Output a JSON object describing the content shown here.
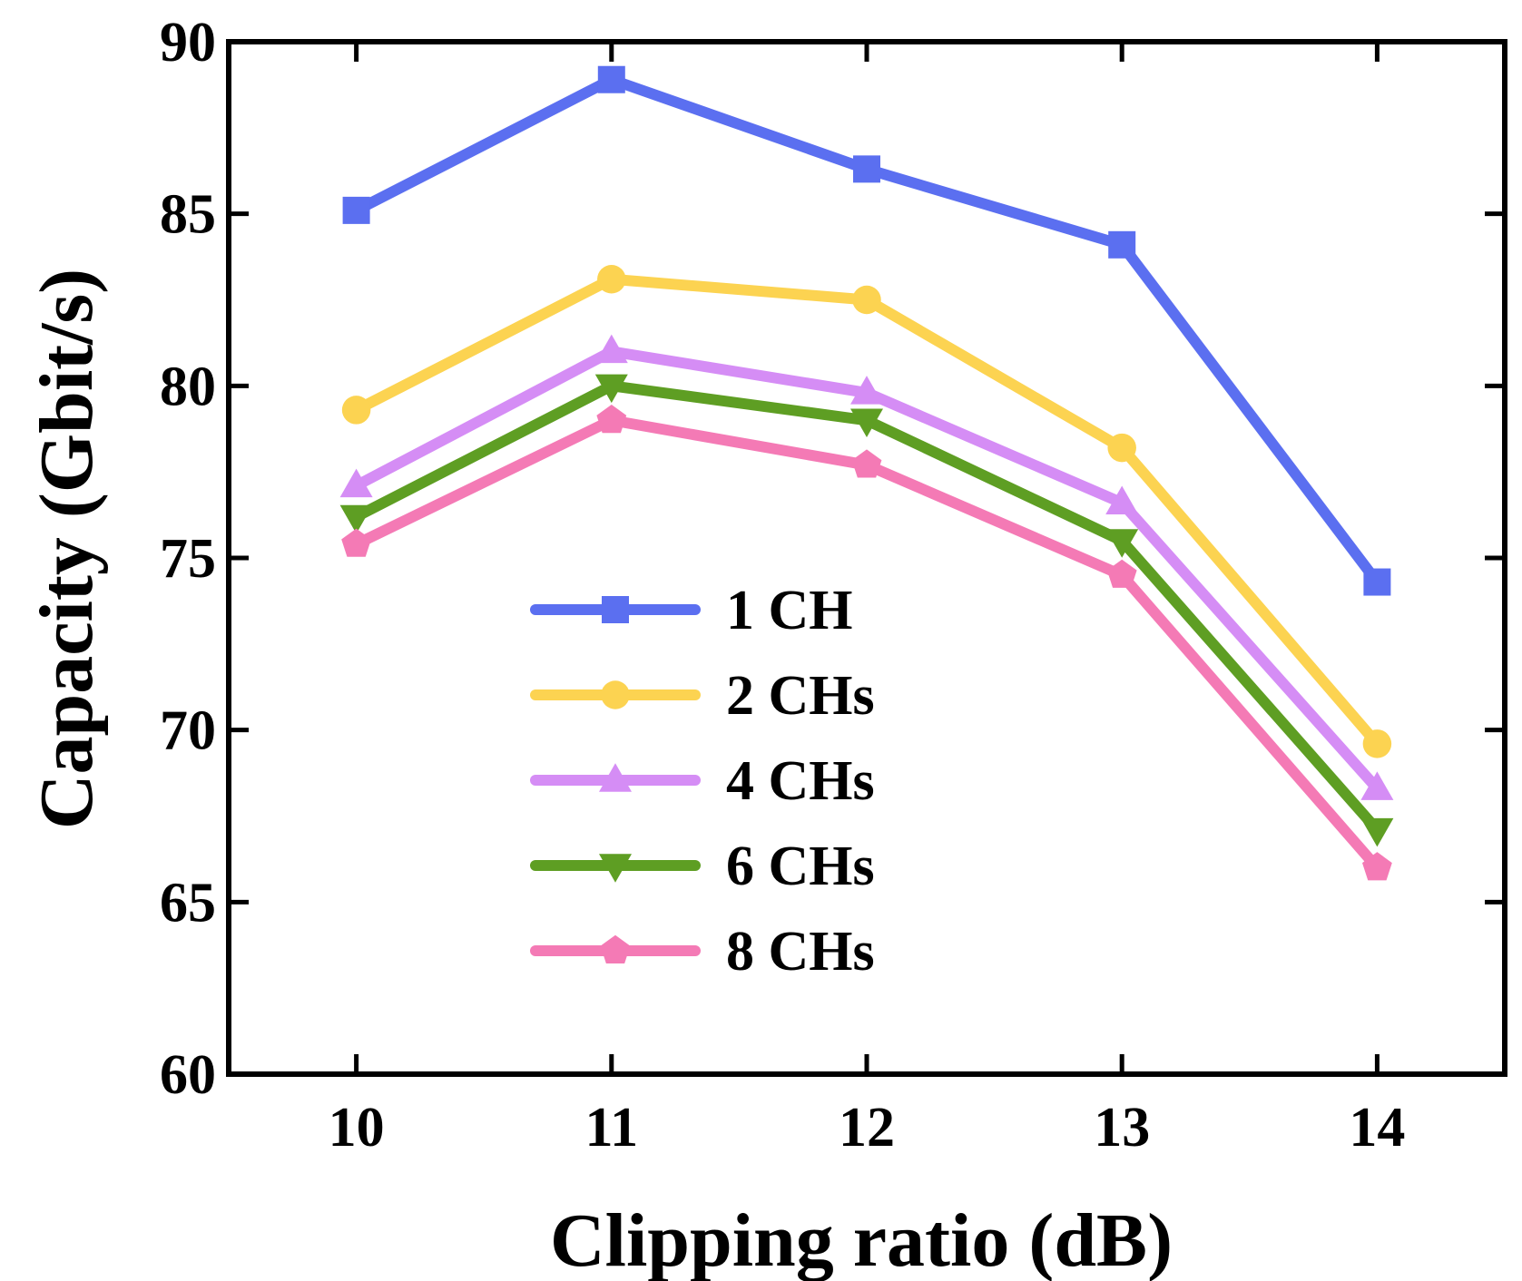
{
  "chart_data": {
    "type": "line",
    "title": "",
    "xlabel": "Clipping ratio (dB)",
    "ylabel": "Capacity (Gbit/s)",
    "x": [
      10,
      11,
      12,
      13,
      14
    ],
    "x_ticks": [
      "10",
      "11",
      "12",
      "13",
      "14"
    ],
    "xlim": [
      9.5,
      14.5
    ],
    "ylim": [
      60,
      90
    ],
    "y_ticks": [
      "60",
      "65",
      "70",
      "75",
      "80",
      "85",
      "90"
    ],
    "legend_position": "center-left",
    "series": [
      {
        "name": "1 CH",
        "color": "#5b6ff0",
        "marker": "square",
        "values": [
          85.1,
          88.9,
          86.3,
          84.1,
          74.3
        ]
      },
      {
        "name": "2 CHs",
        "color": "#fcd351",
        "marker": "circle",
        "values": [
          79.3,
          83.1,
          82.5,
          78.2,
          69.6
        ]
      },
      {
        "name": "4 CHs",
        "color": "#d58df5",
        "marker": "triangle-up",
        "values": [
          77.1,
          81.0,
          79.8,
          76.6,
          68.3
        ]
      },
      {
        "name": "6 CHs",
        "color": "#5e9e23",
        "marker": "triangle-down",
        "values": [
          76.2,
          80.0,
          79.0,
          75.5,
          67.1
        ]
      },
      {
        "name": "8 CHs",
        "color": "#f47ab5",
        "marker": "pentagon",
        "values": [
          75.4,
          79.0,
          77.7,
          74.5,
          66.0
        ]
      }
    ]
  }
}
